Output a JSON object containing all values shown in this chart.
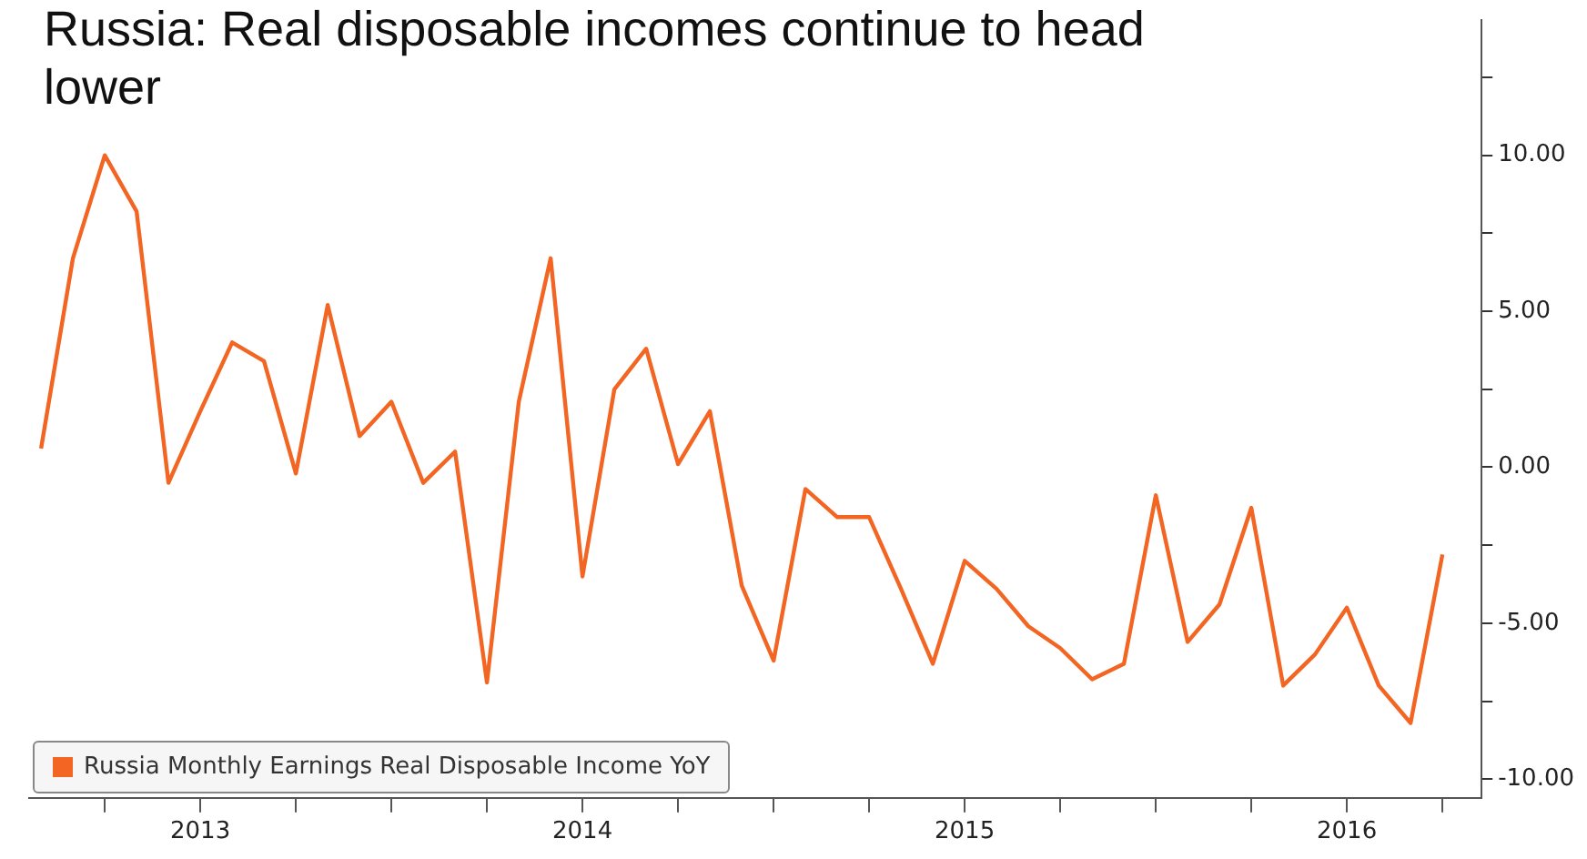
{
  "chart_data": {
    "type": "line",
    "title": "Russia: Real disposable incomes continue to head lower",
    "x": [
      "2013-02",
      "2013-03",
      "2013-04",
      "2013-05",
      "2013-06",
      "2013-07",
      "2013-08",
      "2013-09",
      "2013-10",
      "2013-11",
      "2013-12",
      "2014-01",
      "2014-02",
      "2014-03",
      "2014-04",
      "2014-05",
      "2014-06",
      "2014-07",
      "2014-08",
      "2014-09",
      "2014-10",
      "2014-11",
      "2014-12",
      "2015-01",
      "2015-02",
      "2015-03",
      "2015-04",
      "2015-05",
      "2015-06",
      "2015-07",
      "2015-08",
      "2015-09",
      "2015-10",
      "2015-11",
      "2015-12",
      "2016-01",
      "2016-02",
      "2016-03",
      "2016-04",
      "2016-05",
      "2016-06",
      "2016-07",
      "2016-08",
      "2016-09",
      "2016-10"
    ],
    "series": [
      {
        "name": "Russia Monthly Earnings Real Disposable Income YoY",
        "color": "#f26522",
        "values": [
          0.6,
          6.7,
          10.0,
          8.2,
          -0.5,
          1.8,
          4.0,
          3.4,
          -0.2,
          5.2,
          1.0,
          2.1,
          -0.5,
          0.5,
          -6.9,
          2.1,
          6.7,
          -3.5,
          2.5,
          3.8,
          0.1,
          1.8,
          -3.8,
          -6.2,
          -0.7,
          -1.6,
          -1.6,
          -3.9,
          -6.3,
          -3.0,
          -3.9,
          -5.1,
          -5.8,
          -6.8,
          -6.3,
          -0.9,
          -5.6,
          -4.4,
          -1.3,
          -7.0,
          -6.0,
          -4.5,
          -7.0,
          -8.2,
          -2.8
        ]
      }
    ],
    "xlim": [
      "2013-01-20",
      "2016-11-08"
    ],
    "xticks": [
      {
        "value": "2013-04",
        "label": null
      },
      {
        "value": "2013-07",
        "label": "2013"
      },
      {
        "value": "2013-10",
        "label": null
      },
      {
        "value": "2014-01",
        "label": null
      },
      {
        "value": "2014-04",
        "label": null
      },
      {
        "value": "2014-07",
        "label": "2014"
      },
      {
        "value": "2014-10",
        "label": null
      },
      {
        "value": "2015-01",
        "label": null
      },
      {
        "value": "2015-04",
        "label": null
      },
      {
        "value": "2015-07",
        "label": "2015"
      },
      {
        "value": "2015-10",
        "label": null
      },
      {
        "value": "2016-01",
        "label": null
      },
      {
        "value": "2016-04",
        "label": null
      },
      {
        "value": "2016-07",
        "label": "2016"
      },
      {
        "value": "2016-10",
        "label": null
      }
    ],
    "ylim": [
      -10.6,
      14.35
    ],
    "yticks": [
      {
        "value": -10,
        "label": "-10.00"
      },
      {
        "value": -7.5,
        "label": null
      },
      {
        "value": -5,
        "label": "-5.00"
      },
      {
        "value": -2.5,
        "label": null
      },
      {
        "value": 0,
        "label": "0.00"
      },
      {
        "value": 2.5,
        "label": null
      },
      {
        "value": 5,
        "label": "5.00"
      },
      {
        "value": 7.5,
        "label": null
      },
      {
        "value": 10,
        "label": "10.00"
      },
      {
        "value": 12.5,
        "label": null
      }
    ],
    "grid": false,
    "legend": "bottom left",
    "marker": "none",
    "line_style": "solid"
  }
}
